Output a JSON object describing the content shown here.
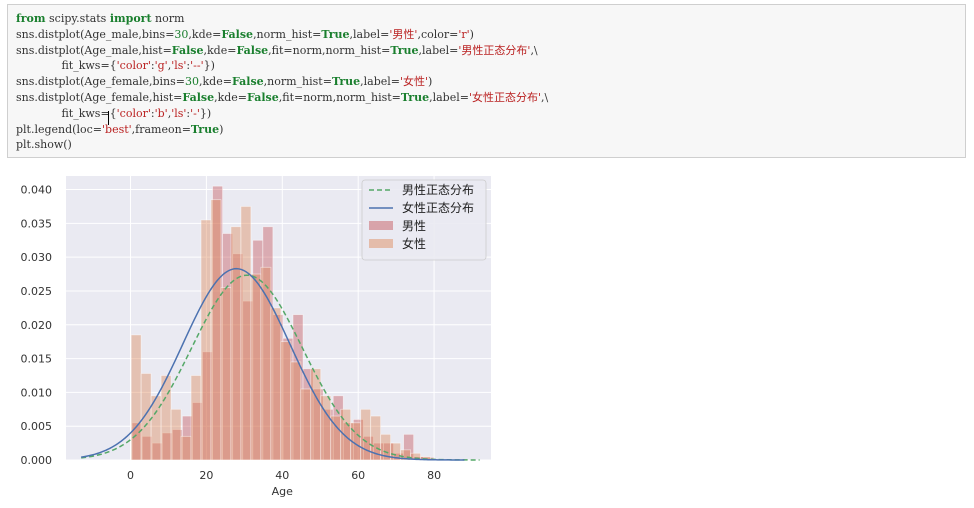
{
  "code_cell": {
    "lines": [
      [
        {
          "t": "from",
          "c": "kw"
        },
        {
          "t": " scipy.stats "
        },
        {
          "t": "import",
          "c": "kw"
        },
        {
          "t": " norm"
        }
      ],
      [
        {
          "t": "sns.distplot(Age_male,bins="
        },
        {
          "t": "30",
          "c": "num"
        },
        {
          "t": ",kde="
        },
        {
          "t": "False",
          "c": "kw"
        },
        {
          "t": ",norm_hist="
        },
        {
          "t": "True",
          "c": "kw"
        },
        {
          "t": ",label="
        },
        {
          "t": "'男性'",
          "c": "str"
        },
        {
          "t": ",color="
        },
        {
          "t": "'r'",
          "c": "str"
        },
        {
          "t": ")"
        }
      ],
      [
        {
          "t": "sns.distplot(Age_male,hist="
        },
        {
          "t": "False",
          "c": "kw"
        },
        {
          "t": ",kde="
        },
        {
          "t": "False",
          "c": "kw"
        },
        {
          "t": ",fit=norm,norm_hist="
        },
        {
          "t": "True",
          "c": "kw"
        },
        {
          "t": ",label="
        },
        {
          "t": "'男性正态分布'",
          "c": "str"
        },
        {
          "t": ",\\"
        }
      ],
      [
        {
          "t": "             fit_kws={"
        },
        {
          "t": "'color'",
          "c": "str"
        },
        {
          "t": ":"
        },
        {
          "t": "'g'",
          "c": "str"
        },
        {
          "t": ","
        },
        {
          "t": "'ls'",
          "c": "str"
        },
        {
          "t": ":"
        },
        {
          "t": "'--'",
          "c": "str"
        },
        {
          "t": "})"
        }
      ],
      [
        {
          "t": "sns.distplot(Age_female,bins="
        },
        {
          "t": "30",
          "c": "num"
        },
        {
          "t": ",kde="
        },
        {
          "t": "False",
          "c": "kw"
        },
        {
          "t": ",norm_hist="
        },
        {
          "t": "True",
          "c": "kw"
        },
        {
          "t": ",label="
        },
        {
          "t": "'女性'",
          "c": "str"
        },
        {
          "t": ")"
        }
      ],
      [
        {
          "t": "sns.distplot(Age_female,hist="
        },
        {
          "t": "False",
          "c": "kw"
        },
        {
          "t": ",kde="
        },
        {
          "t": "False",
          "c": "kw"
        },
        {
          "t": ",fit=norm,norm_hist="
        },
        {
          "t": "True",
          "c": "kw"
        },
        {
          "t": ",label="
        },
        {
          "t": "'女性正态分布'",
          "c": "str"
        },
        {
          "t": ",\\"
        }
      ],
      [
        {
          "t": "             fit_kws={"
        },
        {
          "t": "'color'",
          "c": "str"
        },
        {
          "t": ":"
        },
        {
          "t": "'b'",
          "c": "str"
        },
        {
          "t": ","
        },
        {
          "t": "'ls'",
          "c": "str"
        },
        {
          "t": ":"
        },
        {
          "t": "'-'",
          "c": "str"
        },
        {
          "t": "})"
        }
      ],
      [
        {
          "t": "plt.legend(loc="
        },
        {
          "t": "'best'",
          "c": "str"
        },
        {
          "t": ",frameon="
        },
        {
          "t": "True",
          "c": "kw"
        },
        {
          "t": ")"
        }
      ],
      [
        {
          "t": "plt.show()"
        }
      ]
    ]
  },
  "chart_data": {
    "type": "bar",
    "title": "",
    "xlabel": "Age",
    "ylabel": "",
    "xlim": [
      -17,
      95
    ],
    "ylim": [
      0,
      0.042
    ],
    "x_ticks": [
      0,
      20,
      40,
      60,
      80
    ],
    "y_ticks": [
      0.0,
      0.005,
      0.01,
      0.015,
      0.02,
      0.025,
      0.03,
      0.035,
      0.04
    ],
    "y_tick_labels": [
      "0.000",
      "0.005",
      "0.010",
      "0.015",
      "0.020",
      "0.025",
      "0.030",
      "0.035",
      "0.040"
    ],
    "grid": true,
    "background": "#eaeaf2",
    "legend_position": "top-right",
    "legend": [
      {
        "label": "男性正态分布",
        "kind": "dashed-line",
        "color": "#55a868"
      },
      {
        "label": "女性正态分布",
        "kind": "solid-line",
        "color": "#4c72b0"
      },
      {
        "label": "男性",
        "kind": "patch",
        "color": "#c44e52"
      },
      {
        "label": "女性",
        "kind": "patch",
        "color": "#dd8452"
      }
    ],
    "histograms": [
      {
        "name": "男性",
        "color": "#c44e52",
        "opacity": 0.4,
        "bin_start": 0.42,
        "bin_width": 2.65,
        "values": [
          0.0055,
          0.0035,
          0.0025,
          0.004,
          0.0045,
          0.0065,
          0.0085,
          0.016,
          0.0405,
          0.0335,
          0.0305,
          0.0235,
          0.0325,
          0.0345,
          0.0215,
          0.018,
          0.0215,
          0.0135,
          0.0105,
          0.0075,
          0.0095,
          0.0055,
          0.006,
          0.0035,
          0.0025,
          0.0025,
          0.001,
          0.0038,
          0.0005,
          0.0004
        ]
      },
      {
        "name": "女性",
        "color": "#dd8452",
        "opacity": 0.4,
        "bin_start": 0.17,
        "bin_width": 2.63,
        "values": [
          0.0185,
          0.0128,
          0.0095,
          0.0125,
          0.0075,
          0.0035,
          0.0125,
          0.0355,
          0.0385,
          0.0255,
          0.0345,
          0.0375,
          0.0275,
          0.0285,
          0.0225,
          0.0175,
          0.0145,
          0.0105,
          0.0135,
          0.0095,
          0.0065,
          0.0075,
          0.0055,
          0.0075,
          0.0065,
          0.0038,
          0.0025,
          0.0015,
          0.001,
          0.0005
        ]
      }
    ],
    "curves": [
      {
        "name": "男性正态分布",
        "style": "dashed",
        "color": "#55a868",
        "mean": 30.7,
        "std": 14.6,
        "x_range": [
          -13,
          92
        ]
      },
      {
        "name": "女性正态分布",
        "style": "solid",
        "color": "#4c72b0",
        "mean": 27.9,
        "std": 14.1,
        "x_range": [
          -13,
          88
        ]
      }
    ]
  }
}
